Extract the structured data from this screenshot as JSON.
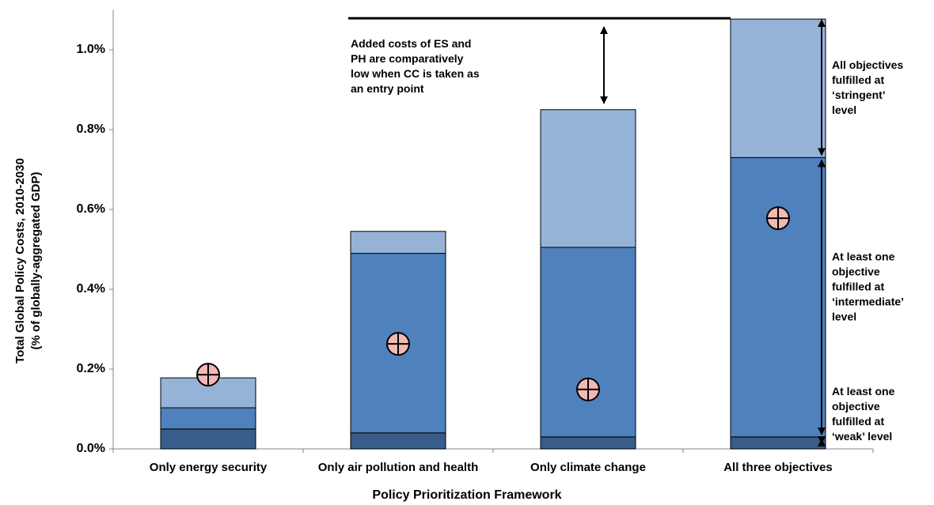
{
  "chart_data": {
    "type": "bar",
    "stacked": true,
    "xlabel": "Policy Prioritization Framework",
    "ylabel": [
      "Total Global Policy Costs, 2010-2030",
      "(% of globally-aggregated GDP)"
    ],
    "categories": [
      "Only energy security",
      "Only air pollution and health",
      "Only climate change",
      "All three objectives"
    ],
    "series": [
      {
        "color": "#385d8a",
        "values": [
          0.05,
          0.04,
          0.03,
          0.03
        ]
      },
      {
        "color": "#4f81bd",
        "values": [
          0.053,
          0.45,
          0.475,
          0.7
        ]
      },
      {
        "color": "#95b3d7",
        "values": [
          0.075,
          0.055,
          0.345,
          0.347
        ]
      }
    ],
    "markers": {
      "color": "#f2b8b2",
      "values": [
        0.186,
        0.263,
        0.149,
        0.578
      ]
    },
    "ylim": [
      0,
      1.1
    ],
    "yticks": [
      {
        "value": 0,
        "label": "0.0%"
      },
      {
        "value": 0.2,
        "label": "0.2%"
      },
      {
        "value": 0.4,
        "label": "0.4%"
      },
      {
        "value": 0.6,
        "label": "0.6%"
      },
      {
        "value": 0.8,
        "label": "0.8%"
      },
      {
        "value": 1.0,
        "label": "1.0%"
      }
    ],
    "annotations": [
      [
        "Added costs of ES and",
        "PH are comparatively",
        "low when CC is taken as",
        "an entry point"
      ],
      [
        "All objectives",
        "fulfilled at",
        "‘stringent’",
        "level"
      ],
      [
        "At least one",
        "objective",
        "fulfilled at",
        "‘intermediate’",
        "level"
      ],
      [
        "At least one",
        "objective",
        "fulfilled at",
        "‘weak’ level"
      ]
    ]
  }
}
